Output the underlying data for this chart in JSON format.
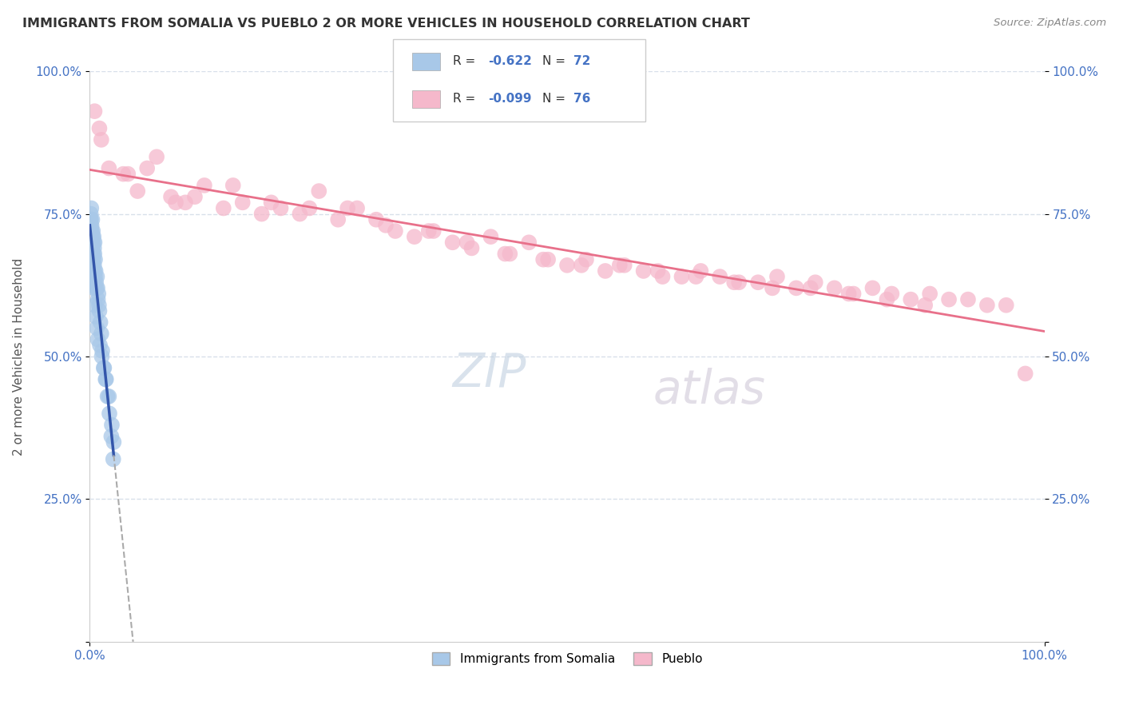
{
  "title": "IMMIGRANTS FROM SOMALIA VS PUEBLO 2 OR MORE VEHICLES IN HOUSEHOLD CORRELATION CHART",
  "source": "Source: ZipAtlas.com",
  "ylabel": "2 or more Vehicles in Household",
  "legend_label1": "Immigrants from Somalia",
  "legend_label2": "Pueblo",
  "r1": "-0.622",
  "n1": "72",
  "r2": "-0.099",
  "n2": "76",
  "color_blue": "#a8c8e8",
  "color_pink": "#f5b8cb",
  "color_blue_line": "#3355aa",
  "color_pink_line": "#e8708a",
  "color_text_blue": "#4472c4",
  "color_watermark_zip": "#c8d8ea",
  "color_watermark_atlas": "#d8c8d8",
  "background": "#ffffff",
  "grid_color": "#d8e0ea",
  "xlim": [
    0,
    100
  ],
  "ylim": [
    0,
    100
  ],
  "blue_x": [
    0.05,
    0.05,
    0.05,
    0.07,
    0.08,
    0.1,
    0.1,
    0.12,
    0.15,
    0.15,
    0.18,
    0.2,
    0.2,
    0.22,
    0.25,
    0.25,
    0.28,
    0.3,
    0.3,
    0.32,
    0.35,
    0.35,
    0.38,
    0.4,
    0.4,
    0.42,
    0.45,
    0.45,
    0.48,
    0.5,
    0.5,
    0.55,
    0.55,
    0.6,
    0.65,
    0.7,
    0.75,
    0.8,
    0.85,
    0.9,
    0.95,
    1.0,
    1.1,
    1.2,
    1.3,
    1.5,
    1.7,
    2.0,
    2.3,
    2.5,
    0.06,
    0.09,
    0.13,
    0.17,
    0.21,
    0.27,
    0.33,
    0.43,
    0.53,
    0.63,
    0.73,
    0.83,
    1.05,
    1.25,
    1.45,
    1.65,
    1.85,
    2.05,
    2.25,
    2.45,
    0.11,
    0.16
  ],
  "blue_y": [
    68,
    72,
    65,
    70,
    74,
    75,
    71,
    69,
    76,
    68,
    73,
    72,
    67,
    70,
    74,
    69,
    68,
    71,
    66,
    72,
    68,
    65,
    70,
    67,
    71,
    64,
    69,
    66,
    68,
    70,
    65,
    67,
    64,
    65,
    63,
    62,
    64,
    62,
    60,
    61,
    59,
    58,
    56,
    54,
    51,
    48,
    46,
    43,
    38,
    35,
    71,
    73,
    72,
    70,
    68,
    66,
    64,
    62,
    59,
    57,
    55,
    53,
    52,
    50,
    48,
    46,
    43,
    40,
    36,
    32,
    74,
    71
  ],
  "pink_x": [
    0.5,
    1.2,
    2.0,
    3.5,
    5.0,
    7.0,
    8.5,
    10.0,
    12.0,
    14.0,
    16.0,
    18.0,
    20.0,
    22.0,
    24.0,
    26.0,
    28.0,
    30.0,
    32.0,
    34.0,
    36.0,
    38.0,
    40.0,
    42.0,
    44.0,
    46.0,
    48.0,
    50.0,
    52.0,
    54.0,
    56.0,
    58.0,
    60.0,
    62.0,
    64.0,
    66.0,
    68.0,
    70.0,
    72.0,
    74.0,
    76.0,
    78.0,
    80.0,
    82.0,
    84.0,
    86.0,
    88.0,
    90.0,
    92.0,
    94.0,
    96.0,
    98.0,
    1.0,
    4.0,
    6.0,
    9.0,
    11.0,
    15.0,
    19.0,
    23.0,
    27.0,
    31.0,
    35.5,
    39.5,
    43.5,
    47.5,
    51.5,
    55.5,
    59.5,
    63.5,
    67.5,
    71.5,
    75.5,
    79.5,
    83.5,
    87.5
  ],
  "pink_y": [
    93,
    88,
    83,
    82,
    79,
    85,
    78,
    77,
    80,
    76,
    77,
    75,
    76,
    75,
    79,
    74,
    76,
    74,
    72,
    71,
    72,
    70,
    69,
    71,
    68,
    70,
    67,
    66,
    67,
    65,
    66,
    65,
    64,
    64,
    65,
    64,
    63,
    63,
    64,
    62,
    63,
    62,
    61,
    62,
    61,
    60,
    61,
    60,
    60,
    59,
    59,
    47,
    90,
    82,
    83,
    77,
    78,
    80,
    77,
    76,
    76,
    73,
    72,
    70,
    68,
    67,
    66,
    66,
    65,
    64,
    63,
    62,
    62,
    61,
    60,
    59
  ]
}
